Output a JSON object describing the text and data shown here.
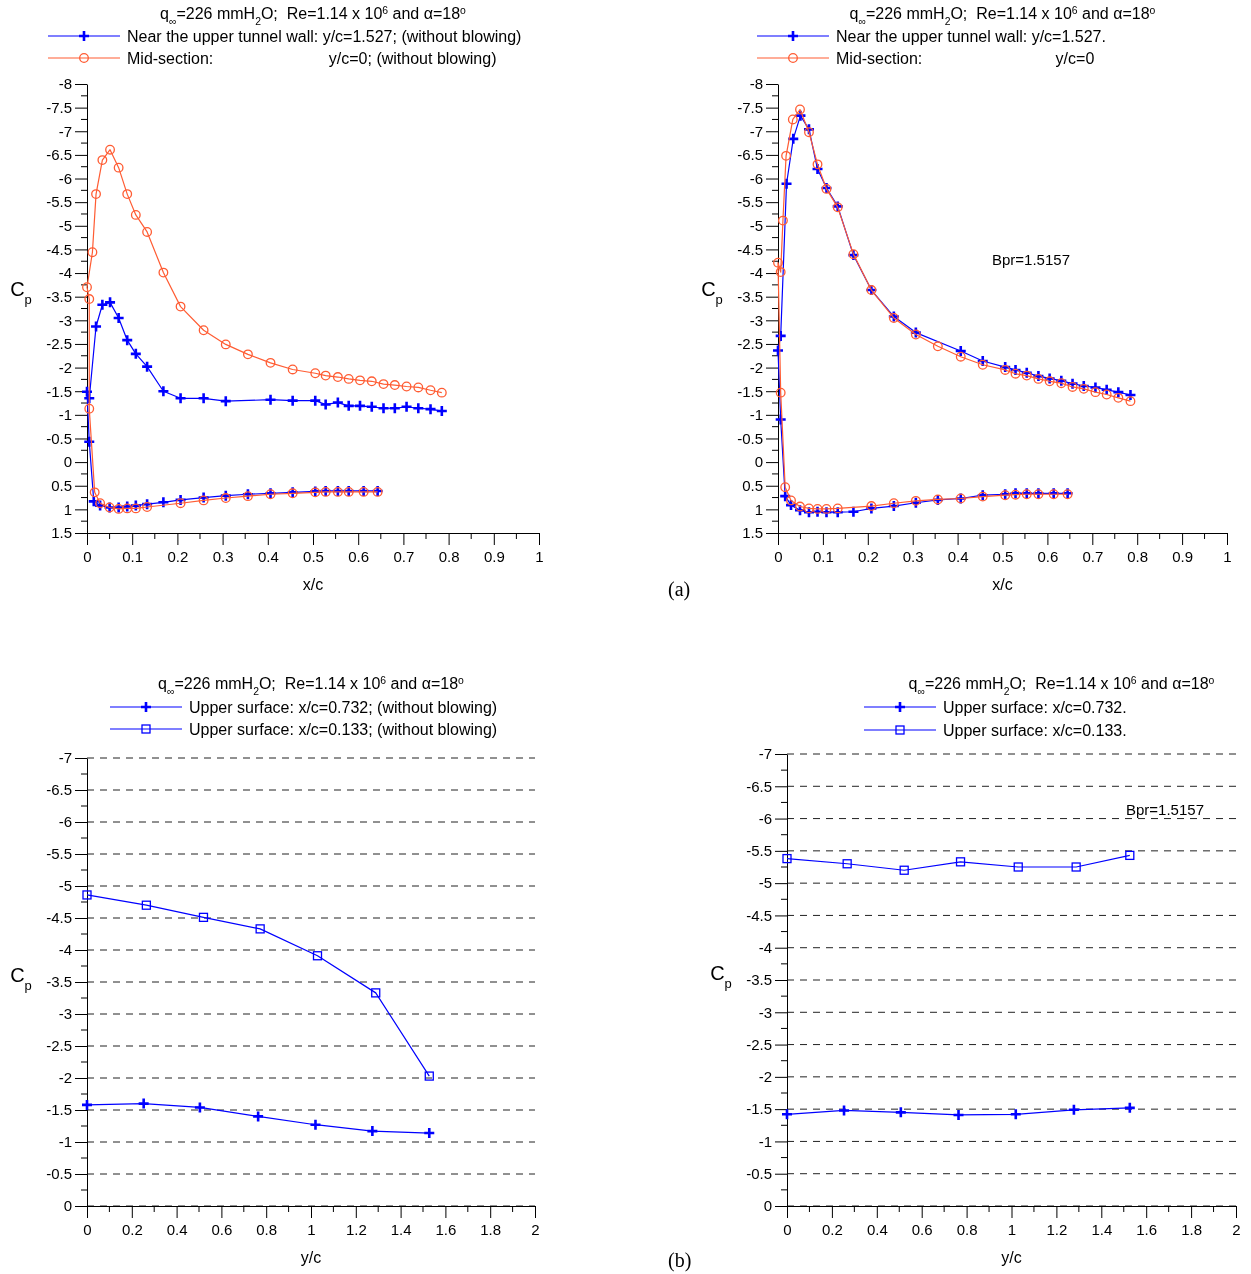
{
  "chart_data": [
    {
      "type": "line",
      "title": "q$_{∞}$=226 mmH$_{2}$O;  Re=1.14 x 10$^{6}$ and α=18$^{o}$",
      "xlabel": "x/c",
      "ylabel": "C$_{p}$",
      "xlim": [
        0,
        1
      ],
      "xticks": [
        0,
        0.1,
        0.2,
        0.3,
        0.4,
        0.5,
        0.6,
        0.7,
        0.8,
        0.9,
        1
      ],
      "ylim": [
        1.5,
        -8
      ],
      "yticks": [
        -8,
        -7.5,
        -7,
        -6.5,
        -6,
        -5.5,
        -5,
        -4.5,
        -4,
        -3.5,
        -3,
        -2.5,
        -2,
        -1.5,
        -1,
        -0.5,
        0,
        0.5,
        1,
        1.5
      ],
      "grid": false,
      "legend": "top",
      "line_style": "solid",
      "series": [
        {
          "name": "Near the upper tunnel wall: y/c=1.527; (without blowing)",
          "color": "#0000ff",
          "marker": "cross",
          "x": [
            0.785,
            0.76,
            0.733,
            0.707,
            0.681,
            0.656,
            0.63,
            0.604,
            0.579,
            0.555,
            0.528,
            0.505,
            0.455,
            0.406,
            0.307,
            0.258,
            0.207,
            0.169,
            0.133,
            0.108,
            0.089,
            0.07,
            0.051,
            0.034,
            0.02,
            0.005,
            0,
            0.005,
            0.015,
            0.029,
            0.05,
            0.07,
            0.089,
            0.108,
            0.133,
            0.169,
            0.207,
            0.258,
            0.307,
            0.356,
            0.406,
            0.455,
            0.505,
            0.528,
            0.555,
            0.579,
            0.612,
            0.643
          ],
          "values": [
            -1.08,
            -1.12,
            -1.14,
            -1.17,
            -1.14,
            -1.14,
            -1.17,
            -1.19,
            -1.19,
            -1.26,
            -1.22,
            -1.3,
            -1.3,
            -1.32,
            -1.29,
            -1.35,
            -1.35,
            -1.5,
            -2.02,
            -2.29,
            -2.58,
            -3.05,
            -3.38,
            -3.33,
            -2.87,
            -1.35,
            -1.49,
            -0.43,
            0.83,
            0.92,
            0.96,
            0.96,
            0.94,
            0.92,
            0.89,
            0.85,
            0.8,
            0.75,
            0.71,
            0.68,
            0.66,
            0.64,
            0.62,
            0.61,
            0.61,
            0.61,
            0.61,
            0.61
          ]
        },
        {
          "name": "Mid-section:                          y/c=0; (without blowing)",
          "color": "#ff5c33",
          "marker": "circle",
          "x": [
            0.785,
            0.76,
            0.733,
            0.707,
            0.681,
            0.656,
            0.63,
            0.604,
            0.579,
            0.555,
            0.528,
            0.505,
            0.455,
            0.406,
            0.356,
            0.307,
            0.258,
            0.207,
            0.169,
            0.133,
            0.108,
            0.089,
            0.07,
            0.051,
            0.034,
            0.02,
            0.012,
            0,
            0.005,
            0.005,
            0.017,
            0.029,
            0.05,
            0.07,
            0.089,
            0.108,
            0.133,
            0.207,
            0.258,
            0.307,
            0.356,
            0.406,
            0.455,
            0.505,
            0.528,
            0.555,
            0.579,
            0.612,
            0.643
          ],
          "values": [
            -1.47,
            -1.52,
            -1.58,
            -1.6,
            -1.63,
            -1.65,
            -1.71,
            -1.73,
            -1.76,
            -1.8,
            -1.83,
            -1.88,
            -1.96,
            -2.1,
            -2.28,
            -2.49,
            -2.79,
            -3.29,
            -4.01,
            -4.87,
            -5.23,
            -5.67,
            -6.23,
            -6.61,
            -6.39,
            -5.67,
            -4.44,
            -3.7,
            -3.45,
            -1.13,
            0.64,
            0.87,
            0.96,
            0.99,
            0.98,
            0.98,
            0.95,
            0.87,
            0.81,
            0.76,
            0.72,
            0.68,
            0.66,
            0.64,
            0.63,
            0.63,
            0.63,
            0.63,
            0.63
          ]
        }
      ]
    },
    {
      "type": "line",
      "title": "q$_{∞}$=226 mmH$_{2}$O;  Re=1.14 x 10$^{6}$ and α=18$^{o}$",
      "xlabel": "x/c",
      "ylabel": "C$_{p}$",
      "xlim": [
        0,
        1
      ],
      "xticks": [
        0,
        0.1,
        0.2,
        0.3,
        0.4,
        0.5,
        0.6,
        0.7,
        0.8,
        0.9,
        1
      ],
      "ylim": [
        1.5,
        -8
      ],
      "yticks": [
        -8,
        -7.5,
        -7,
        -6.5,
        -6,
        -5.5,
        -5,
        -4.5,
        -4,
        -3.5,
        -3,
        -2.5,
        -2,
        -1.5,
        -1,
        -0.5,
        0,
        0.5,
        1,
        1.5
      ],
      "grid": false,
      "legend": "top",
      "line_style": "solid",
      "annotations": [
        "Bpr=1.5157",
        "(a)"
      ],
      "series": [
        {
          "name": "Near the upper tunnel wall: y/c=1.527.",
          "color": "#0000ff",
          "marker": "cross",
          "x": [
            0.785,
            0.758,
            0.732,
            0.707,
            0.681,
            0.656,
            0.631,
            0.605,
            0.58,
            0.554,
            0.529,
            0.506,
            0.456,
            0.407,
            0.307,
            0.258,
            0.208,
            0.168,
            0.133,
            0.108,
            0.088,
            0.069,
            0.05,
            0.034,
            0.019,
            0.006,
            0,
            0.006,
            0.016,
            0.029,
            0.049,
            0.069,
            0.088,
            0.108,
            0.133,
            0.168,
            0.208,
            0.258,
            0.307,
            0.356,
            0.407,
            0.456,
            0.506,
            0.529,
            0.554,
            0.58,
            0.614,
            0.645
          ],
          "values": [
            -1.42,
            -1.48,
            -1.53,
            -1.58,
            -1.61,
            -1.66,
            -1.72,
            -1.77,
            -1.82,
            -1.89,
            -1.95,
            -2.01,
            -2.14,
            -2.35,
            -2.74,
            -3.08,
            -3.64,
            -4.38,
            -5.41,
            -5.8,
            -6.2,
            -7.04,
            -7.33,
            -6.84,
            -5.89,
            -2.67,
            -2.36,
            -0.9,
            0.72,
            0.91,
            1.02,
            1.06,
            1.05,
            1.06,
            1.06,
            1.05,
            0.98,
            0.93,
            0.86,
            0.8,
            0.77,
            0.7,
            0.68,
            0.66,
            0.66,
            0.66,
            0.66,
            0.66
          ]
        },
        {
          "name": "Mid-section:                              y/c=0",
          "color": "#ff5c33",
          "marker": "circle",
          "x": [
            0.785,
            0.758,
            0.732,
            0.707,
            0.681,
            0.656,
            0.631,
            0.605,
            0.58,
            0.554,
            0.529,
            0.506,
            0.456,
            0.407,
            0.356,
            0.307,
            0.258,
            0.208,
            0.168,
            0.133,
            0.108,
            0.088,
            0.069,
            0.049,
            0.033,
            0.018,
            0.011,
            0.006,
            0,
            0.006,
            0.016,
            0.029,
            0.049,
            0.069,
            0.088,
            0.108,
            0.133,
            0.208,
            0.258,
            0.307,
            0.356,
            0.407,
            0.456,
            0.506,
            0.529,
            0.554,
            0.58,
            0.614,
            0.645
          ],
          "values": [
            -1.29,
            -1.36,
            -1.43,
            -1.48,
            -1.55,
            -1.59,
            -1.67,
            -1.71,
            -1.76,
            -1.83,
            -1.87,
            -1.95,
            -2.06,
            -2.23,
            -2.45,
            -2.7,
            -3.05,
            -3.64,
            -4.4,
            -5.39,
            -5.78,
            -6.3,
            -6.98,
            -7.46,
            -7.25,
            -6.48,
            -5.11,
            -4.02,
            -4.22,
            -1.47,
            0.53,
            0.81,
            0.94,
            0.98,
            0.99,
            0.99,
            0.98,
            0.93,
            0.87,
            0.82,
            0.79,
            0.77,
            0.73,
            0.7,
            0.69,
            0.68,
            0.68,
            0.68,
            0.68
          ]
        }
      ]
    },
    {
      "type": "line",
      "title": "q$_{∞}$=226 mmH$_{2}$O;  Re=1.14 x 10$^{6}$ and α=18$^{o}$",
      "xlabel": "y/c",
      "ylabel": "C$_{p}$",
      "xlim": [
        0,
        2
      ],
      "xticks": [
        0,
        0.2,
        0.4,
        0.6,
        0.8,
        1,
        1.2,
        1.4,
        1.6,
        1.8,
        2
      ],
      "ylim": [
        0,
        -7
      ],
      "yticks": [
        -7,
        -6.5,
        -6,
        -5.5,
        -5,
        -4.5,
        -4,
        -3.5,
        -3,
        -2.5,
        -2,
        -1.5,
        -1,
        -0.5,
        0
      ],
      "grid": "y",
      "legend": "top",
      "line_style": "solid",
      "series": [
        {
          "name": "Upper surface: x/c=0.732; (without blowing)",
          "color": "#0000ff",
          "marker": "cross",
          "x": [
            0,
            0.253,
            0.504,
            0.764,
            1.02,
            1.274,
            1.528
          ],
          "values": [
            -1.58,
            -1.6,
            -1.54,
            -1.4,
            -1.27,
            -1.17,
            -1.14
          ]
        },
        {
          "name": "Upper surface: x/c=0.133; (without blowing)",
          "color": "#0000ff",
          "marker": "square",
          "x": [
            0,
            0.265,
            0.52,
            0.773,
            1.029,
            1.289,
            1.528
          ],
          "values": [
            -4.86,
            -4.7,
            -4.51,
            -4.33,
            -3.91,
            -3.33,
            -2.03
          ]
        }
      ]
    },
    {
      "type": "line",
      "title": "q$_{∞}$=226 mmH$_{2}$O;  Re=1.14 x 10$^{6}$ and α=18$^{o}$",
      "xlabel": "y/c",
      "ylabel": "C$_{p}$",
      "xlim": [
        0,
        2
      ],
      "xticks": [
        0,
        0.2,
        0.4,
        0.6,
        0.8,
        1,
        1.2,
        1.4,
        1.6,
        1.8,
        2
      ],
      "ylim": [
        0,
        -7
      ],
      "yticks": [
        -7,
        -6.5,
        -6,
        -5.5,
        -5,
        -4.5,
        -4,
        -3.5,
        -3,
        -2.5,
        -2,
        -1.5,
        -1,
        -0.5,
        0
      ],
      "grid": "y",
      "legend": "top",
      "line_style": "solid",
      "annotations": [
        "Bpr=1.5157",
        "(b)"
      ],
      "series": [
        {
          "name": "Upper surface: x/c=0.732.",
          "color": "#0000ff",
          "marker": "cross",
          "x": [
            0,
            0.254,
            0.507,
            0.764,
            1.019,
            1.278,
            1.527
          ],
          "values": [
            -1.42,
            -1.48,
            -1.45,
            -1.41,
            -1.42,
            -1.49,
            -1.52
          ]
        },
        {
          "name": "Upper surface: x/c=0.133.",
          "color": "#0000ff",
          "marker": "square",
          "x": [
            0,
            0.268,
            0.522,
            0.773,
            1.03,
            1.288,
            1.527
          ],
          "values": [
            -5.38,
            -5.3,
            -5.2,
            -5.33,
            -5.25,
            -5.25,
            -5.43
          ]
        }
      ]
    }
  ]
}
